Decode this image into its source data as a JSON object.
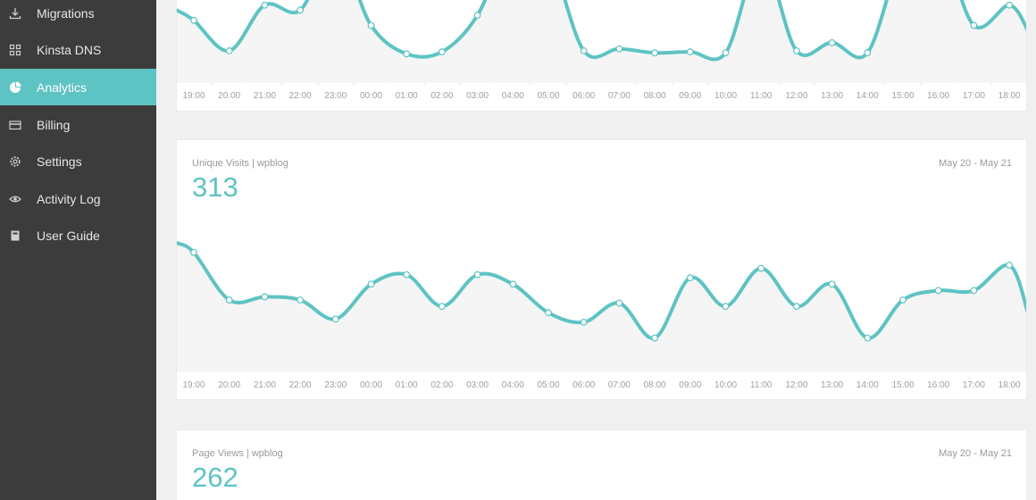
{
  "colors": {
    "accent": "#5ec3c3",
    "sidebar_bg": "#3c3c3c",
    "plot_bg": "#f5f5f5"
  },
  "sidebar": {
    "items": [
      {
        "label": "Migrations",
        "icon": "download-icon",
        "active": false
      },
      {
        "label": "Kinsta DNS",
        "icon": "grid-icon",
        "active": false
      },
      {
        "label": "Analytics",
        "icon": "pie-chart-icon",
        "active": true
      },
      {
        "label": "Billing",
        "icon": "credit-card-icon",
        "active": false
      },
      {
        "label": "Settings",
        "icon": "gear-icon",
        "active": false
      },
      {
        "label": "Activity Log",
        "icon": "eye-icon",
        "active": false
      },
      {
        "label": "User Guide",
        "icon": "book-icon",
        "active": false
      }
    ]
  },
  "cards": [
    {
      "label": "",
      "value": "",
      "date": ""
    },
    {
      "label": "Unique Visits | wpblog",
      "value": "313",
      "date": "May 20 - May 21"
    },
    {
      "label": "Page Views | wpblog",
      "value": "262",
      "date": "May 20 - May 21"
    }
  ],
  "chart_data": [
    {
      "type": "area",
      "title": "",
      "categories": [
        "19:00",
        "20:00",
        "21:00",
        "22:00",
        "23:00",
        "00:00",
        "01:00",
        "02:00",
        "03:00",
        "04:00",
        "05:00",
        "06:00",
        "07:00",
        "08:00",
        "09:00",
        "10:00",
        "11:00",
        "12:00",
        "13:00",
        "14:00",
        "15:00",
        "16:00",
        "17:00",
        "18:00"
      ],
      "values": [
        60,
        30,
        75,
        70,
        130,
        55,
        27,
        29,
        65,
        140,
        125,
        30,
        32,
        28,
        29,
        28,
        120,
        30,
        38,
        28,
        125,
        140,
        55,
        75
      ],
      "ylim": [
        0,
        110
      ],
      "start_value": 70,
      "end_value": 50
    },
    {
      "type": "area",
      "title": "Unique Visits | wpblog",
      "categories": [
        "19:00",
        "20:00",
        "21:00",
        "22:00",
        "23:00",
        "00:00",
        "01:00",
        "02:00",
        "03:00",
        "04:00",
        "05:00",
        "06:00",
        "07:00",
        "08:00",
        "09:00",
        "10:00",
        "11:00",
        "12:00",
        "13:00",
        "14:00",
        "15:00",
        "16:00",
        "17:00",
        "18:00"
      ],
      "values": [
        25,
        10,
        11,
        10,
        4,
        15,
        18,
        8,
        18,
        15,
        6,
        3,
        9,
        -2,
        17,
        8,
        20,
        8,
        15,
        -2,
        10,
        13,
        13,
        21
      ],
      "ylim": [
        -10,
        30
      ],
      "start_value": 28,
      "end_value": 6
    }
  ]
}
